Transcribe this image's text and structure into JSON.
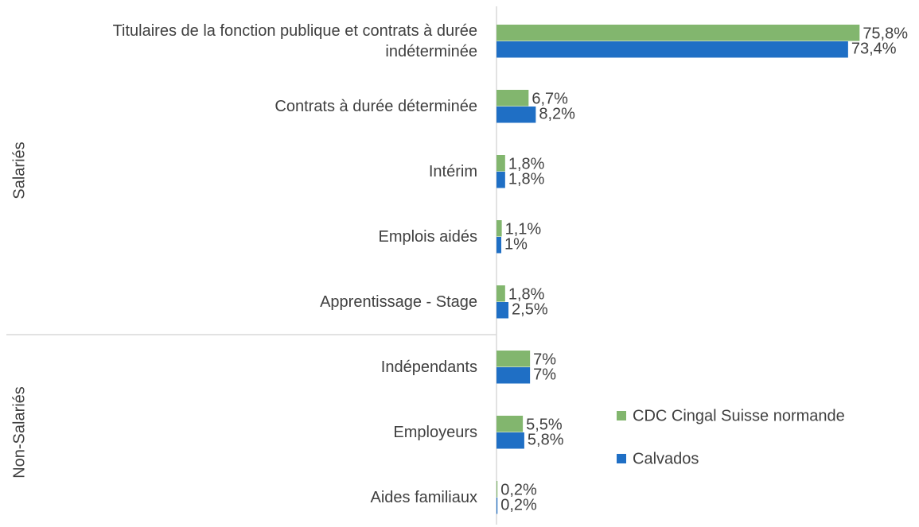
{
  "chart_data": {
    "type": "hbar",
    "categories": [
      "Titulaires de la fonction publique et contrats à durée indéterminée",
      "Contrats à durée déterminée",
      "Intérim",
      "Emplois aidés",
      "Apprentissage - Stage",
      "Indépendants",
      "Employeurs",
      "Aides familiaux"
    ],
    "groups": [
      {
        "name": "Salariés",
        "size": 5
      },
      {
        "name": "Non-Salariés",
        "size": 3
      }
    ],
    "series": [
      {
        "name": "CDC Cingal Suisse normande",
        "color": "#82b66e",
        "values": [
          75.8,
          6.7,
          1.8,
          1.1,
          1.8,
          7,
          5.5,
          0.2
        ],
        "value_labels": [
          "75,8%",
          "6,7%",
          "1,8%",
          "1,1%",
          "1,8%",
          "7%",
          "5,5%",
          "0,2%"
        ]
      },
      {
        "name": "Calvados",
        "color": "#1f6fc5",
        "values": [
          73.4,
          8.2,
          1.8,
          1,
          2.5,
          7,
          5.8,
          0.2
        ],
        "value_labels": [
          "73,4%",
          "8,2%",
          "1,8%",
          "1%",
          "2,5%",
          "7%",
          "5,8%",
          "0,2%"
        ]
      }
    ],
    "xlim": [
      0,
      80
    ],
    "legend": "right"
  }
}
